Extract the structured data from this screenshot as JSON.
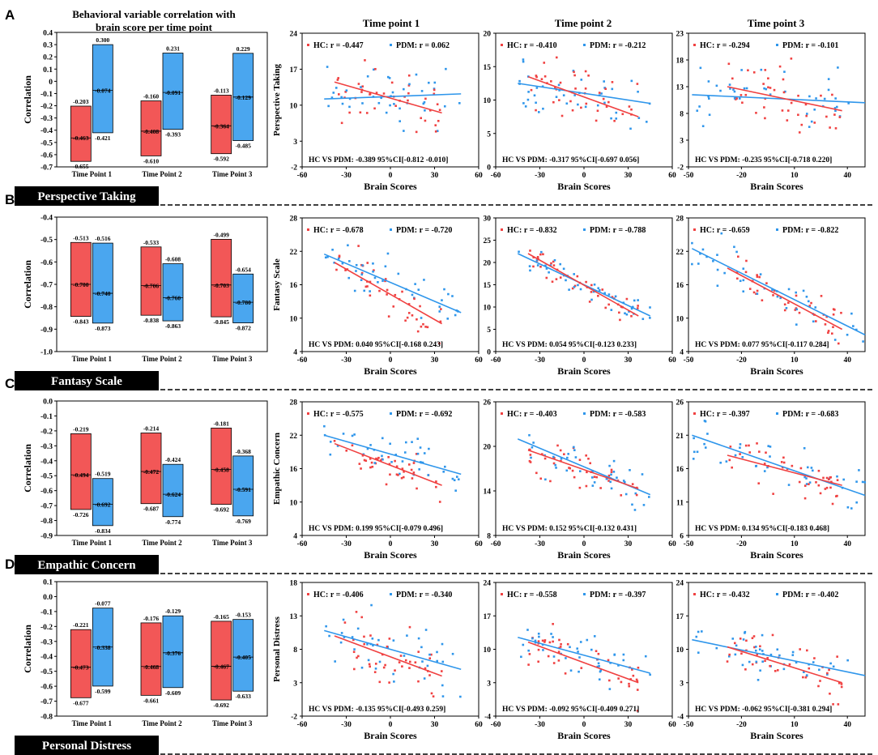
{
  "figure": {
    "left_title_line1": "Behavioral variable correlation with",
    "left_title_line2": "brain score per time point",
    "timepoint_titles": [
      "Time point 1",
      "Time point 2",
      "Time point 3"
    ],
    "xaxis_label": "Brain Scores",
    "bar_ylabel": "Correlation",
    "bar_categories": [
      "Time Point 1",
      "Time Point 2",
      "Time Point 3"
    ]
  },
  "colors": {
    "hc": "#f04141",
    "pdm": "#2f96eb",
    "hc_bar": "#f25757",
    "pdm_bar": "#4aa6ef"
  },
  "chart_data": [
    {
      "panel": "A",
      "label": "Perspective Taking",
      "type": "bar",
      "ylabel": "Correlation",
      "ylim": [
        -0.7,
        0.4
      ],
      "yticks": [
        -0.7,
        -0.6,
        -0.5,
        -0.4,
        -0.3,
        -0.2,
        -0.1,
        0,
        0.1,
        0.2,
        0.3,
        0.4
      ],
      "ytick_labels": [
        "-0.7",
        "-0.6",
        "-0.5",
        "-0.4",
        "-0.3",
        "-0.2",
        "-0.1",
        "0",
        "0.1",
        "0.2",
        "0.3",
        "0.4"
      ],
      "categories": [
        "Time Point 1",
        "Time Point 2",
        "Time Point 3"
      ],
      "series": [
        {
          "name": "HC",
          "top": [
            -0.203,
            -0.16,
            -0.113
          ],
          "mid": [
            -0.463,
            -0.408,
            -0.364
          ],
          "bottom": [
            -0.655,
            -0.61,
            -0.592
          ],
          "top_labels": [
            "-0.203",
            "-0.160",
            "-0.113"
          ],
          "mid_labels": [
            "-0.463",
            "-0.408",
            "-0.364"
          ],
          "bottom_labels": [
            "-0.655",
            "-0.610",
            "-0.592"
          ]
        },
        {
          "name": "PDM",
          "top": [
            0.3,
            0.231,
            0.229
          ],
          "mid": [
            -0.074,
            -0.091,
            -0.129
          ],
          "bottom": [
            -0.421,
            -0.393,
            -0.485
          ],
          "top_labels": [
            "0.300",
            "0.231",
            "0.229"
          ],
          "mid_labels": [
            "-0.074",
            "-0.091",
            "-0.129"
          ],
          "bottom_labels": [
            "-0.421",
            "-0.393",
            "-0.485"
          ]
        }
      ]
    },
    {
      "panel": "B",
      "label": "Fantasy Scale",
      "type": "bar",
      "ylabel": "Correlation",
      "ylim": [
        -1.0,
        -0.4
      ],
      "yticks": [
        -1.0,
        -0.9,
        -0.8,
        -0.7,
        -0.6,
        -0.5,
        -0.4
      ],
      "ytick_labels": [
        "-1.0",
        "-0.9",
        "-0.8",
        "-0.7",
        "-0.6",
        "-0.5",
        "-0.4"
      ],
      "categories": [
        "Time Point 1",
        "Time Point 2",
        "Time Point 3"
      ],
      "series": [
        {
          "name": "HC",
          "top": [
            -0.513,
            -0.533,
            -0.499
          ],
          "mid": [
            -0.7,
            -0.706,
            -0.703
          ],
          "bottom": [
            -0.843,
            -0.838,
            -0.845
          ],
          "top_labels": [
            "-0.513",
            "-0.533",
            "-0.499"
          ],
          "mid_labels": [
            "-0.700",
            "-0.706",
            "-0.703"
          ],
          "bottom_labels": [
            "-0.843",
            "-0.838",
            "-0.845"
          ]
        },
        {
          "name": "PDM",
          "top": [
            -0.516,
            -0.608,
            -0.654
          ],
          "mid": [
            -0.74,
            -0.76,
            -0.78
          ],
          "bottom": [
            -0.873,
            -0.863,
            -0.872
          ],
          "top_labels": [
            "-0.516",
            "-0.608",
            "-0.654"
          ],
          "mid_labels": [
            "-0.740",
            "-0.760",
            "-0.780"
          ],
          "bottom_labels": [
            "-0.873",
            "-0.863",
            "-0.872"
          ]
        }
      ]
    },
    {
      "panel": "C",
      "label": "Empathic Concern",
      "type": "bar",
      "ylabel": "Correlation",
      "ylim": [
        -0.9,
        0.0
      ],
      "yticks": [
        -0.9,
        -0.8,
        -0.7,
        -0.6,
        -0.5,
        -0.4,
        -0.3,
        -0.2,
        -0.1,
        0.0
      ],
      "ytick_labels": [
        "-0.9",
        "-0.8",
        "-0.7",
        "-0.6",
        "-0.5",
        "-0.4",
        "-0.3",
        "-0.2",
        "-0.1",
        "0.0"
      ],
      "categories": [
        "Time Point 1",
        "Time Point 2",
        "Time Point 3"
      ],
      "series": [
        {
          "name": "HC",
          "top": [
            -0.219,
            -0.214,
            -0.181
          ],
          "mid": [
            -0.494,
            -0.472,
            -0.458
          ],
          "bottom": [
            -0.726,
            -0.687,
            -0.692
          ],
          "top_labels": [
            "-0.219",
            "-0.214",
            "-0.181"
          ],
          "mid_labels": [
            "-0.494",
            "-0.472",
            "-0.458"
          ],
          "bottom_labels": [
            "-0.726",
            "-0.687",
            "-0.692"
          ]
        },
        {
          "name": "PDM",
          "top": [
            -0.519,
            -0.424,
            -0.368
          ],
          "mid": [
            -0.692,
            -0.624,
            -0.591
          ],
          "bottom": [
            -0.834,
            -0.774,
            -0.769
          ],
          "top_labels": [
            "-0.519",
            "-0.424",
            "-0.368"
          ],
          "mid_labels": [
            "-0.692",
            "-0.624",
            "-0.591"
          ],
          "bottom_labels": [
            "-0.834",
            "-0.774",
            "-0.769"
          ]
        }
      ]
    },
    {
      "panel": "D",
      "label": "Personal Distress",
      "type": "bar",
      "ylabel": "Correlation",
      "ylim": [
        -0.8,
        0.1
      ],
      "yticks": [
        -0.8,
        -0.7,
        -0.6,
        -0.5,
        -0.4,
        -0.3,
        -0.2,
        -0.1,
        0.0,
        0.1
      ],
      "ytick_labels": [
        "-0.8",
        "-0.7",
        "-0.6",
        "-0.5",
        "-0.4",
        "-0.3",
        "-0.2",
        "-0.1",
        "0.0",
        "0.1"
      ],
      "categories": [
        "Time Point 1",
        "Time Point 2",
        "Time Point 3"
      ],
      "series": [
        {
          "name": "HC",
          "top": [
            -0.221,
            -0.176,
            -0.165
          ],
          "mid": [
            -0.473,
            -0.468,
            -0.467
          ],
          "bottom": [
            -0.677,
            -0.661,
            -0.692
          ],
          "top_labels": [
            "-0.221",
            "-0.176",
            "-0.165"
          ],
          "mid_labels": [
            "-0.473",
            "-0.468",
            "-0.467"
          ],
          "bottom_labels": [
            "-0.677",
            "-0.661",
            "-0.692"
          ]
        },
        {
          "name": "PDM",
          "top": [
            -0.077,
            -0.129,
            -0.153
          ],
          "mid": [
            -0.338,
            -0.376,
            -0.405
          ],
          "bottom": [
            -0.599,
            -0.609,
            -0.633
          ],
          "top_labels": [
            "-0.077",
            "-0.129",
            "-0.153"
          ],
          "mid_labels": [
            "-0.338",
            "-0.376",
            "-0.405"
          ],
          "bottom_labels": [
            "-0.599",
            "-0.609",
            "-0.633"
          ]
        }
      ]
    },
    {
      "panel": "A",
      "time_point": 1,
      "type": "scatter",
      "ylabel": "Perspective Taking",
      "xlim": [
        -60,
        60
      ],
      "xticks": [
        -60,
        -30,
        0,
        30,
        60
      ],
      "ylim": [
        -2,
        24
      ],
      "yticks": [
        -2,
        3,
        10,
        17,
        24
      ],
      "legend_hc": "HC: r = -0.447",
      "legend_pdm": "PDM: r = 0.062",
      "stat": "HC VS PDM: -0.389  95%CI[-0.812 -0.010]",
      "hc_line": {
        "x": [
          -38,
          35
        ],
        "y": [
          14.5,
          8.5
        ]
      },
      "pdm_line": {
        "x": [
          -45,
          48
        ],
        "y": [
          11.2,
          12.2
        ]
      },
      "seed": 11,
      "hc_mean": 11,
      "pdm_mean": 11.5,
      "spread": 3.5
    },
    {
      "panel": "A",
      "time_point": 2,
      "type": "scatter",
      "ylabel": "",
      "xlim": [
        -60,
        60
      ],
      "xticks": [
        -60,
        -30,
        0,
        30,
        60
      ],
      "ylim": [
        0,
        20
      ],
      "yticks": [
        0,
        5,
        10,
        15,
        20
      ],
      "legend_hc": "HC: r = -0.410",
      "legend_pdm": "PDM: r = -0.212",
      "stat": "HC VS PDM: -0.317   95%CI[-0.697 0.056]",
      "hc_line": {
        "x": [
          -38,
          37
        ],
        "y": [
          13.5,
          7.5
        ]
      },
      "pdm_line": {
        "x": [
          -45,
          45
        ],
        "y": [
          12.5,
          9.5
        ]
      },
      "seed": 23,
      "hc_mean": 10.5,
      "pdm_mean": 11,
      "spread": 2.8
    },
    {
      "panel": "A",
      "time_point": 3,
      "type": "scatter",
      "ylabel": "",
      "xlim": [
        -50,
        50
      ],
      "xticks": [
        -50,
        -20,
        10,
        40
      ],
      "ylim": [
        -2,
        23
      ],
      "yticks": [
        -2,
        3,
        8,
        13,
        18,
        23
      ],
      "legend_hc": "HC: r = -0.294",
      "legend_pdm": "PDM: r = -0.101",
      "stat": "HC VS PDM: -0.235   95%CI[-0.718 0.220]",
      "hc_line": {
        "x": [
          -28,
          37
        ],
        "y": [
          13,
          8.5
        ]
      },
      "pdm_line": {
        "x": [
          -48,
          50
        ],
        "y": [
          11.5,
          10
        ]
      },
      "seed": 37,
      "hc_mean": 10.5,
      "pdm_mean": 11,
      "spread": 3.5
    },
    {
      "panel": "B",
      "time_point": 1,
      "type": "scatter",
      "ylabel": "Fantasy Scale",
      "xlim": [
        -60,
        60
      ],
      "xticks": [
        -60,
        -30,
        0,
        30,
        60
      ],
      "ylim": [
        4,
        28
      ],
      "yticks": [
        4,
        10,
        16,
        22,
        28
      ],
      "legend_hc": "HC: r = -0.678",
      "legend_pdm": "PDM: r = -0.720",
      "stat": "HC VS PDM: 0.040 95%CI[-0.168 0.243]",
      "hc_line": {
        "x": [
          -38,
          35
        ],
        "y": [
          20,
          9
        ]
      },
      "pdm_line": {
        "x": [
          -45,
          48
        ],
        "y": [
          21.5,
          11
        ]
      },
      "seed": 41,
      "hc_mean": 14,
      "pdm_mean": 16,
      "spread": 2.5
    },
    {
      "panel": "B",
      "time_point": 2,
      "type": "scatter",
      "ylabel": "",
      "xlim": [
        -60,
        60
      ],
      "xticks": [
        -60,
        -30,
        0,
        30,
        60
      ],
      "ylim": [
        0,
        30
      ],
      "yticks": [
        0,
        5,
        10,
        15,
        20,
        25,
        30
      ],
      "legend_hc": "HC: r = -0.832",
      "legend_pdm": "PDM: r = -0.788",
      "stat": "HC VS PDM: 0.054    95%CI[-0.123 0.233]",
      "hc_line": {
        "x": [
          -38,
          37
        ],
        "y": [
          22,
          8
        ]
      },
      "pdm_line": {
        "x": [
          -45,
          45
        ],
        "y": [
          22,
          8
        ]
      },
      "seed": 53,
      "hc_mean": 15,
      "pdm_mean": 16,
      "spread": 2
    },
    {
      "panel": "B",
      "time_point": 3,
      "type": "scatter",
      "ylabel": "",
      "xlim": [
        -50,
        50
      ],
      "xticks": [
        -50,
        -20,
        10,
        40
      ],
      "ylim": [
        4,
        28
      ],
      "yticks": [
        4,
        10,
        16,
        22,
        28
      ],
      "legend_hc": "HC: r = -0.659",
      "legend_pdm": "PDM: r = -0.822",
      "stat": "HC VS PDM: 0.077    95%CI[-0.117 0.284]",
      "hc_line": {
        "x": [
          -28,
          37
        ],
        "y": [
          19,
          8
        ]
      },
      "pdm_line": {
        "x": [
          -48,
          50
        ],
        "y": [
          22.5,
          7
        ]
      },
      "seed": 67,
      "hc_mean": 14,
      "pdm_mean": 15,
      "spread": 2.5
    },
    {
      "panel": "C",
      "time_point": 1,
      "type": "scatter",
      "ylabel": "Empathic Concern",
      "xlim": [
        -60,
        60
      ],
      "xticks": [
        -60,
        -30,
        0,
        30,
        60
      ],
      "ylim": [
        4,
        28
      ],
      "yticks": [
        4,
        10,
        16,
        22,
        28
      ],
      "legend_hc": "HC: r = -0.575",
      "legend_pdm": "PDM: r = -0.692",
      "stat": "HC VS PDM: 0.199 95%CI[-0.079 0.496]",
      "hc_line": {
        "x": [
          -38,
          35
        ],
        "y": [
          20.5,
          13
        ]
      },
      "pdm_line": {
        "x": [
          -45,
          48
        ],
        "y": [
          22,
          15
        ]
      },
      "seed": 71,
      "hc_mean": 17,
      "pdm_mean": 18,
      "spread": 2
    },
    {
      "panel": "C",
      "time_point": 2,
      "type": "scatter",
      "ylabel": "",
      "xlim": [
        -60,
        60
      ],
      "xticks": [
        -60,
        -30,
        0,
        30,
        60
      ],
      "ylim": [
        8,
        26
      ],
      "yticks": [
        8,
        14,
        20,
        26
      ],
      "legend_hc": "HC: r = -0.403",
      "legend_pdm": "PDM: r = -0.583",
      "stat": "HC VS PDM: 0.152     95%CI[-0.132 0.431]",
      "hc_line": {
        "x": [
          -38,
          37
        ],
        "y": [
          19.5,
          14.3
        ]
      },
      "pdm_line": {
        "x": [
          -45,
          45
        ],
        "y": [
          21,
          13.5
        ]
      },
      "seed": 83,
      "hc_mean": 17,
      "pdm_mean": 17.5,
      "spread": 1.8
    },
    {
      "panel": "C",
      "time_point": 3,
      "type": "scatter",
      "ylabel": "",
      "xlim": [
        -50,
        50
      ],
      "xticks": [
        -50,
        -20,
        10,
        40
      ],
      "ylim": [
        6,
        26
      ],
      "yticks": [
        6,
        11,
        16,
        21,
        26
      ],
      "legend_hc": "HC: r = -0.397",
      "legend_pdm": "PDM: r = -0.683",
      "stat": "HC VS PDM: 0.134    95%CI[-0.183 0.468]",
      "hc_line": {
        "x": [
          -28,
          37
        ],
        "y": [
          18,
          13.5
        ]
      },
      "pdm_line": {
        "x": [
          -48,
          50
        ],
        "y": [
          21,
          12
        ]
      },
      "seed": 97,
      "hc_mean": 16,
      "pdm_mean": 17,
      "spread": 2
    },
    {
      "panel": "D",
      "time_point": 1,
      "type": "scatter",
      "ylabel": "Personal Distress",
      "xlim": [
        -60,
        60
      ],
      "xticks": [
        -60,
        -30,
        0,
        30,
        60
      ],
      "ylim": [
        -2,
        18
      ],
      "yticks": [
        -2,
        3,
        8,
        13,
        18
      ],
      "legend_hc": "HC: r = -0.406",
      "legend_pdm": "PDM: r = -0.340",
      "stat": "HC VS PDM: -0.135 95%CI[-0.493 0.259]",
      "hc_line": {
        "x": [
          -38,
          35
        ],
        "y": [
          10,
          4
        ]
      },
      "pdm_line": {
        "x": [
          -45,
          48
        ],
        "y": [
          10.8,
          5
        ]
      },
      "seed": 101,
      "hc_mean": 7,
      "pdm_mean": 8,
      "spread": 3
    },
    {
      "panel": "D",
      "time_point": 2,
      "type": "scatter",
      "ylabel": "",
      "xlim": [
        -60,
        60
      ],
      "xticks": [
        -60,
        -30,
        0,
        30,
        60
      ],
      "ylim": [
        -4,
        24
      ],
      "yticks": [
        -4,
        3,
        10,
        17,
        24
      ],
      "legend_hc": "HC: r = -0.558",
      "legend_pdm": "PDM: r = -0.397",
      "stat": "HC VS PDM: -0.092    95%CI[-0.409 0.271]",
      "hc_line": {
        "x": [
          -38,
          37
        ],
        "y": [
          11.5,
          3
        ]
      },
      "pdm_line": {
        "x": [
          -45,
          45
        ],
        "y": [
          12.5,
          5
        ]
      },
      "seed": 113,
      "hc_mean": 7,
      "pdm_mean": 8,
      "spread": 3
    },
    {
      "panel": "D",
      "time_point": 3,
      "type": "scatter",
      "ylabel": "",
      "xlim": [
        -50,
        50
      ],
      "xticks": [
        -50,
        -20,
        10,
        40
      ],
      "ylim": [
        -4,
        24
      ],
      "yticks": [
        -4,
        3,
        10,
        17,
        24
      ],
      "legend_hc": "HC: r = -0.432",
      "legend_pdm": "PDM: r = -0.402",
      "stat": "HC VS PDM: -0.062    95%CI[-0.381 0.294]",
      "hc_line": {
        "x": [
          -28,
          37
        ],
        "y": [
          10.5,
          3
        ]
      },
      "pdm_line": {
        "x": [
          -48,
          50
        ],
        "y": [
          12,
          4.5
        ]
      },
      "seed": 127,
      "hc_mean": 7,
      "pdm_mean": 8,
      "spread": 3.2
    }
  ]
}
